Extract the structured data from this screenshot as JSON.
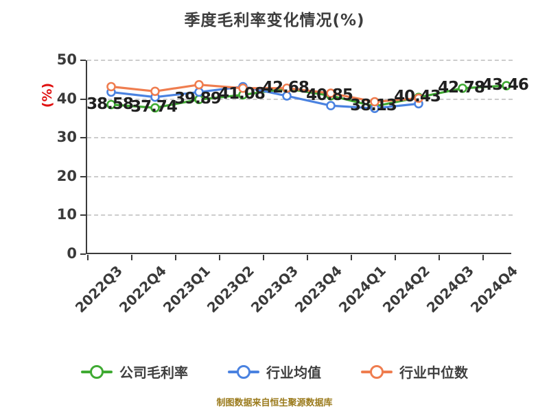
{
  "title": "季度毛利率变化情况(%)",
  "y_axis_unit": "(%)",
  "footer": "制图数据来自恒生聚源数据库",
  "colors": {
    "company": "#3faa32",
    "industry_mean": "#4a82e0",
    "industry_median": "#ef7d4f",
    "axis": "#3a3a3a",
    "gridline": "#cccccc",
    "title_text": "#3d3d3d",
    "unit_label": "#e01212",
    "footer_text": "#9b7b1d"
  },
  "chart_data": {
    "type": "line",
    "title": "季度毛利率变化情况(%)",
    "ylabel": "(%)",
    "ylim": [
      0,
      50
    ],
    "yticks": [
      0,
      10,
      20,
      30,
      40,
      50
    ],
    "grid": "dashed horizontal",
    "legend_position": "bottom",
    "categories": [
      "2022Q3",
      "2022Q4",
      "2023Q1",
      "2023Q2",
      "2023Q3",
      "2023Q4",
      "2024Q1",
      "2024Q2",
      "2024Q3",
      "2024Q4"
    ],
    "series": [
      {
        "name": "公司毛利率",
        "color": "#3faa32",
        "show_labels": true,
        "values": [
          38.58,
          37.74,
          39.89,
          41.08,
          42.68,
          40.85,
          38.13,
          40.43,
          42.78,
          43.46
        ]
      },
      {
        "name": "行业均值",
        "color": "#4a82e0",
        "show_labels": false,
        "values": [
          41.8,
          40.5,
          41.8,
          43.2,
          40.8,
          38.3,
          37.6,
          38.8
        ]
      },
      {
        "name": "行业中位数",
        "color": "#ef7d4f",
        "show_labels": false,
        "values": [
          43.2,
          42.0,
          43.7,
          42.8,
          42.8,
          41.5,
          39.3,
          40.2
        ]
      }
    ]
  },
  "legend": [
    {
      "label": "公司毛利率",
      "color": "#3faa32"
    },
    {
      "label": "行业均值",
      "color": "#4a82e0"
    },
    {
      "label": "行业中位数",
      "color": "#ef7d4f"
    }
  ]
}
